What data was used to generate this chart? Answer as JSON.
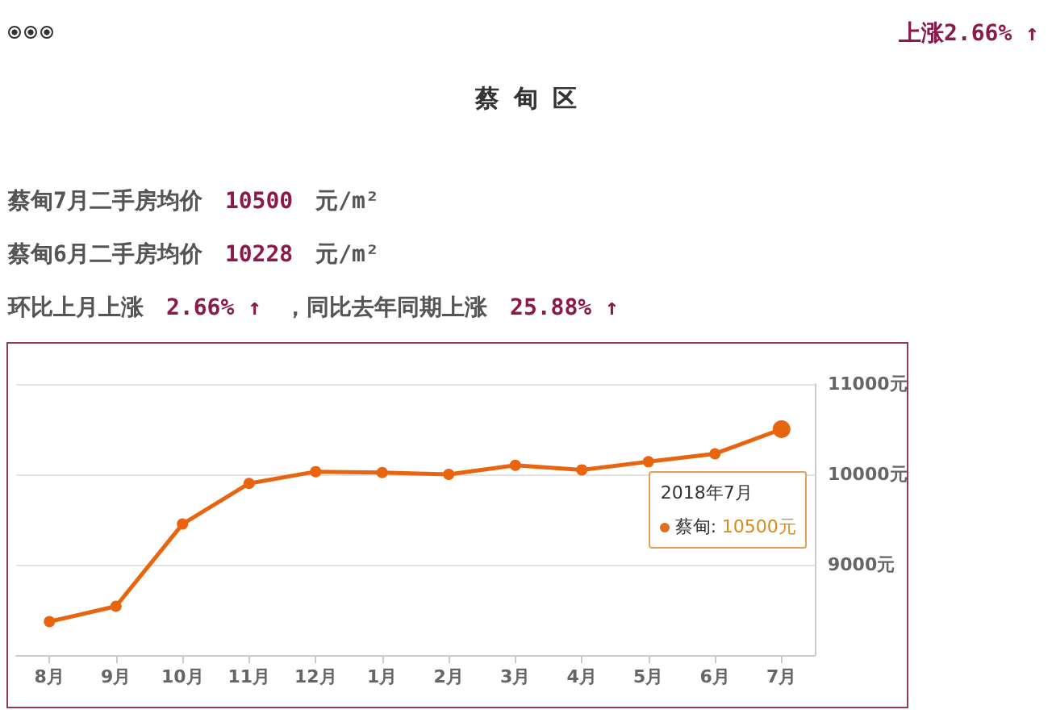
{
  "chart_data": {
    "type": "line",
    "title": "蔡 甸 区",
    "categories": [
      "8月",
      "9月",
      "10月",
      "11月",
      "12月",
      "1月",
      "2月",
      "3月",
      "4月",
      "5月",
      "6月",
      "7月"
    ],
    "series": [
      {
        "color": "#e8640f",
        "values": [
          8370,
          8540,
          9450,
          9900,
          10030,
          10020,
          10000,
          10100,
          10050,
          10140,
          10228,
          10500
        ]
      }
    ],
    "ylim": [
      8000,
      11000
    ],
    "yticks": [
      {
        "value": 8000,
        "label": null
      },
      {
        "value": 9000,
        "label": "9000元"
      },
      {
        "value": 10000,
        "label": "10000元"
      },
      {
        "value": 11000,
        "label": "11000元"
      }
    ],
    "grid": "y",
    "marker": "circle",
    "line_style": "solid",
    "annotations": [
      "上涨2.66% ↑",
      "蔡甸7月二手房均价",
      "10500",
      "元/m²",
      "蔡甸6月二手房均价",
      "10228",
      "元/m²",
      "环比上月上涨",
      "2.66% ↑",
      "，同比去年同期上涨",
      "25.88% ↑",
      "2018年7月",
      "蔡甸:",
      "10500元"
    ]
  }
}
